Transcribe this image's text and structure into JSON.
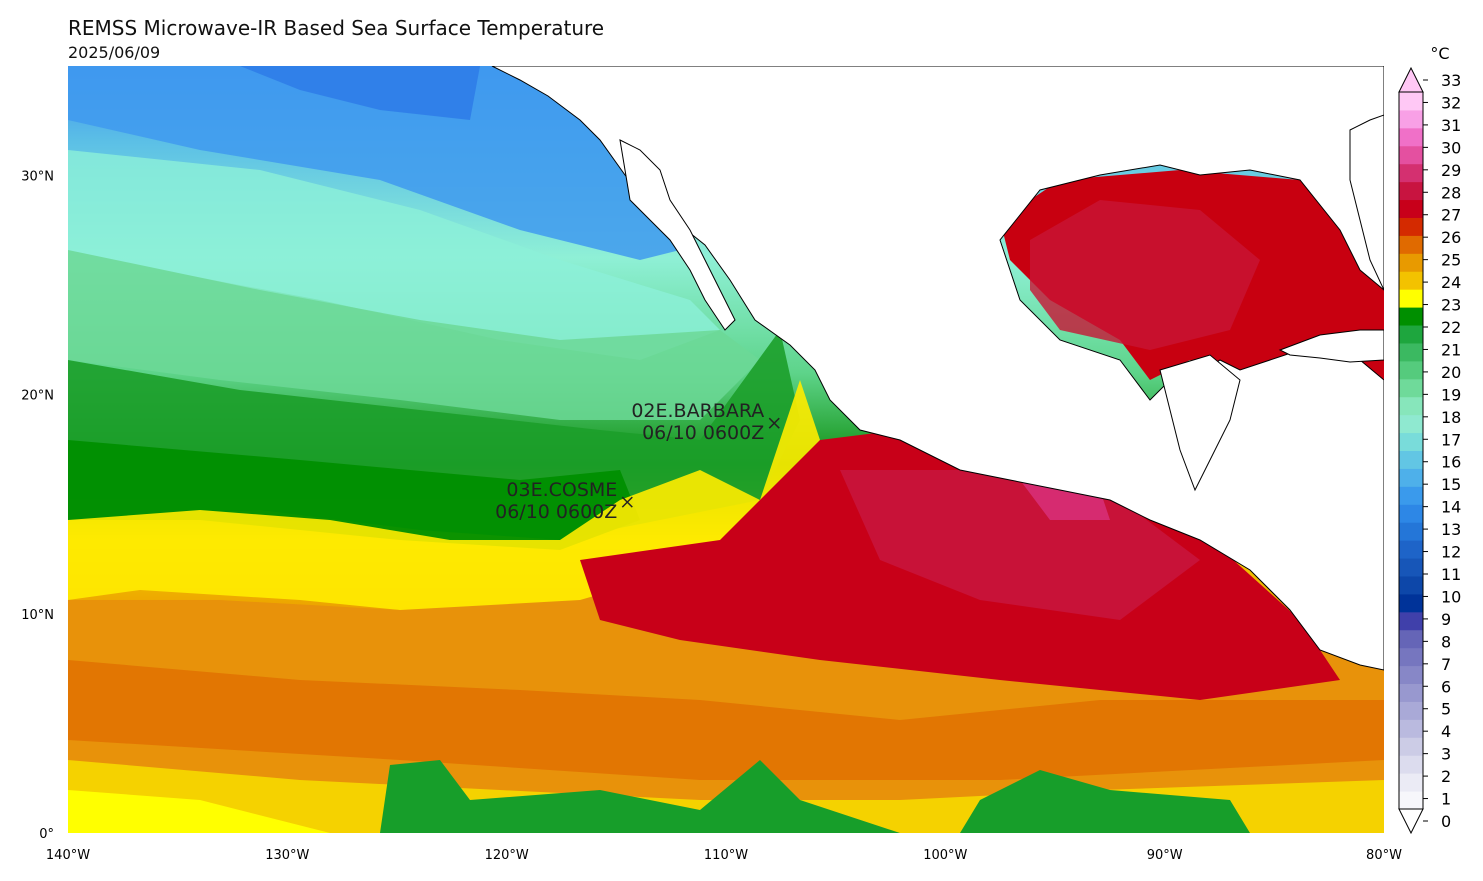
{
  "title": "REMSS Microwave-IR Based Sea Surface Temperature",
  "subtitle": "2025/06/09",
  "map": {
    "projection": "equirectangular",
    "lon_range": [
      -140,
      -80
    ],
    "lat_range": [
      0,
      35
    ],
    "lat_ticks": [
      {
        "value": 30,
        "label": "30°N"
      },
      {
        "value": 20,
        "label": "20°N"
      },
      {
        "value": 10,
        "label": "10°N"
      },
      {
        "value": 0,
        "label": "0°"
      }
    ],
    "lon_ticks": [
      {
        "value": -140,
        "label": "140°W"
      },
      {
        "value": -130,
        "label": "130°W"
      },
      {
        "value": -120,
        "label": "120°W"
      },
      {
        "value": -110,
        "label": "110°W"
      },
      {
        "value": -100,
        "label": "100°W"
      },
      {
        "value": -90,
        "label": "90°W"
      },
      {
        "value": -80,
        "label": "80°W"
      }
    ],
    "land_color": "#ffffff",
    "coastline_color": "#000000"
  },
  "storms": [
    {
      "name": "02E.BARBARA",
      "time": "06/10 0600Z",
      "lon": -107.8,
      "lat": 18.7
    },
    {
      "name": "03E.COSME",
      "time": "06/10 0600Z",
      "lon": -114.5,
      "lat": 15.1
    }
  ],
  "colorbar": {
    "unit": "°C",
    "min": 0,
    "max": 33,
    "extend": "both",
    "labels": [
      "0",
      "1",
      "2",
      "3",
      "4",
      "5",
      "6",
      "7",
      "8",
      "9",
      "10",
      "11",
      "12",
      "13",
      "14",
      "15",
      "16",
      "17",
      "18",
      "19",
      "20",
      "21",
      "22",
      "23",
      "24",
      "25",
      "26",
      "27",
      "28",
      "29",
      "30",
      "31",
      "32",
      "33"
    ],
    "colors": [
      "#f7f7fb",
      "#ebebf5",
      "#dcdcee",
      "#ccccE6",
      "#babadf",
      "#a9a9d7",
      "#9898cf",
      "#8787c7",
      "#7676bf",
      "#6565b7",
      "#4040aa",
      "#003399",
      "#0d47a9",
      "#1756b8",
      "#1e64c8",
      "#2476d8",
      "#2d87e6",
      "#3a9aec",
      "#4eb0ea",
      "#62c6e4",
      "#79dcda",
      "#8fe9d0",
      "#87e6bb",
      "#6fda9a",
      "#55cb7d",
      "#3bb961",
      "#1ea63e",
      "#008f00",
      "#ffff00",
      "#f3c200",
      "#e89a00",
      "#e06a00",
      "#d42a00",
      "#c8001a",
      "#c81440",
      "#d43070",
      "#e450a0",
      "#f070c8",
      "#f8a0e6",
      "#ffc8f5"
    ],
    "bottom_extend_color": "#ffffff",
    "top_extend_color": "#ffc8f5"
  }
}
